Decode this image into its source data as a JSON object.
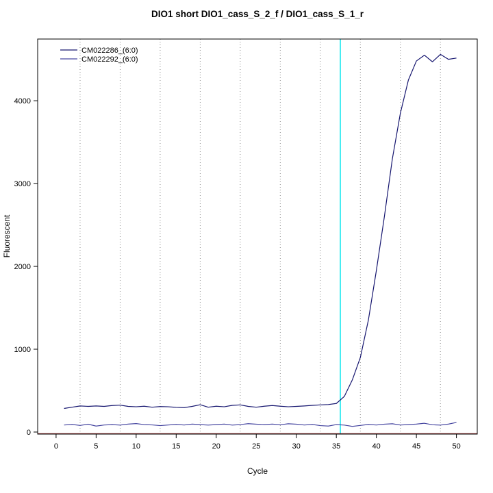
{
  "chart_data": {
    "type": "line",
    "title": "DIO1 short DIO1_cass_S_2_f / DIO1_cass_S_1_r",
    "xlabel": "Cycle",
    "ylabel": "Fluorescent",
    "xlim": [
      -2.3,
      52.6
    ],
    "ylim": [
      -25,
      4745
    ],
    "x_ticks": [
      0,
      5,
      10,
      15,
      20,
      25,
      30,
      35,
      40,
      45,
      50
    ],
    "y_ticks": [
      0,
      1000,
      2000,
      3000,
      4000
    ],
    "grid_x": [
      3,
      8,
      13,
      18,
      23,
      28,
      33,
      38,
      43,
      48
    ],
    "grid_on": true,
    "legend_position": "top-left",
    "threshold_cycle_line": {
      "x": 35.5,
      "color": "#00e5ee"
    },
    "baseline_line": {
      "y": -20,
      "color": "#8b2222"
    },
    "x": [
      1,
      2,
      3,
      4,
      5,
      6,
      7,
      8,
      9,
      10,
      11,
      12,
      13,
      14,
      15,
      16,
      17,
      18,
      19,
      20,
      21,
      22,
      23,
      24,
      25,
      26,
      27,
      28,
      29,
      30,
      31,
      32,
      33,
      34,
      35,
      36,
      37,
      38,
      39,
      40,
      41,
      42,
      43,
      44,
      45,
      46,
      47,
      48,
      49,
      50
    ],
    "series": [
      {
        "name": "CM022286_(6:0)",
        "color": "#14146e",
        "values": [
          285,
          300,
          315,
          310,
          315,
          310,
          320,
          325,
          310,
          305,
          312,
          300,
          308,
          305,
          298,
          295,
          310,
          330,
          300,
          312,
          305,
          322,
          328,
          310,
          300,
          312,
          320,
          312,
          305,
          310,
          315,
          322,
          328,
          332,
          345,
          430,
          630,
          900,
          1350,
          1950,
          2600,
          3300,
          3850,
          4250,
          4480,
          4550,
          4470,
          4560,
          4500,
          4515
        ]
      },
      {
        "name": "CM022292_(6:0)",
        "color": "#4646a0",
        "values": [
          85,
          92,
          80,
          95,
          72,
          85,
          90,
          84,
          96,
          102,
          90,
          86,
          78,
          85,
          92,
          85,
          96,
          90,
          84,
          90,
          96,
          84,
          90,
          101,
          95,
          90,
          96,
          88,
          100,
          95,
          85,
          92,
          78,
          72,
          90,
          84,
          68,
          80,
          92,
          85,
          95,
          100,
          85,
          90,
          96,
          106,
          88,
          84,
          96,
          116
        ]
      }
    ]
  }
}
